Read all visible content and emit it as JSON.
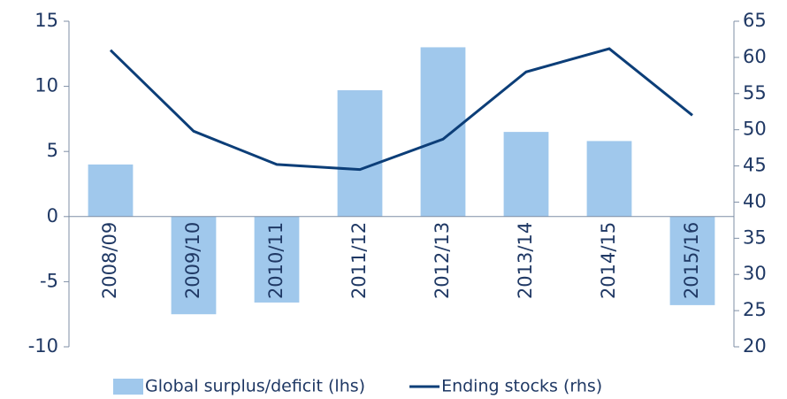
{
  "chart_data": {
    "type": "bar_line",
    "categories": [
      "2008/09",
      "2009/10",
      "2010/11",
      "2011/12",
      "2012/13",
      "2013/14",
      "2014/15",
      "2015/16"
    ],
    "series": [
      {
        "name": "Global surplus/deficit (lhs)",
        "color": "#a0c8ec",
        "type": "bar",
        "values": [
          4,
          -7.5,
          -6.6,
          9.7,
          13,
          6.5,
          5.8,
          -6.8
        ]
      },
      {
        "name": "Ending stocks (rhs)",
        "color": "#0c3e78",
        "type": "line",
        "axis": "y2",
        "values": [
          61,
          49.8,
          45.2,
          44.5,
          48.7,
          58,
          61.2,
          52
        ]
      }
    ],
    "ylim": [
      -10,
      15
    ],
    "yticks": [
      -10,
      -5,
      0,
      5,
      10,
      15
    ],
    "y2lim": [
      20,
      65
    ],
    "y2ticks": [
      20,
      25,
      30,
      35,
      40,
      45,
      50,
      55,
      60,
      65
    ],
    "legend": "bottom"
  }
}
